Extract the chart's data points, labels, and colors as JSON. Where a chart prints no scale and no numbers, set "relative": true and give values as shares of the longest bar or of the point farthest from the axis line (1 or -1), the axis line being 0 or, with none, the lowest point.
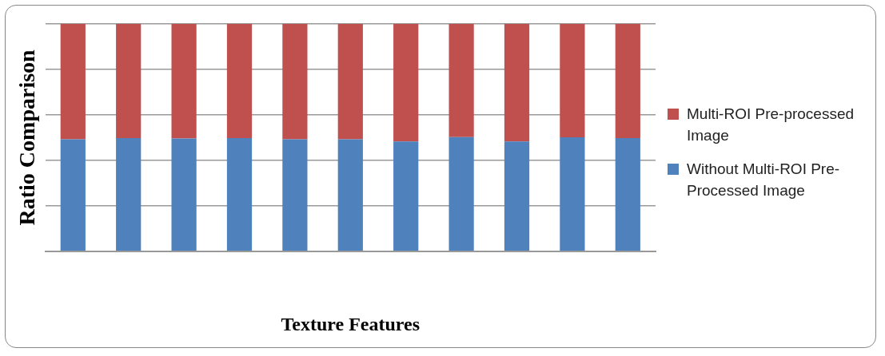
{
  "chart_data": {
    "type": "bar",
    "stacked": true,
    "relative": true,
    "xlabel": "Texture Features",
    "ylabel": "Ratio Comparison",
    "categories": [
      null,
      null,
      null,
      null,
      null,
      null,
      null,
      null,
      null,
      null,
      null
    ],
    "grid": "y",
    "legend": "right",
    "series": [
      {
        "name": "Without Multi-ROI Pre-Processed Image",
        "color": "#4f81bd",
        "values": [
          0.493,
          0.498,
          0.496,
          0.498,
          0.493,
          0.493,
          0.483,
          0.502,
          0.483,
          0.501,
          0.498
        ]
      },
      {
        "name": "Multi-ROI Pre-processed Image",
        "color": "#c0504d",
        "values": [
          0.507,
          0.502,
          0.504,
          0.502,
          0.507,
          0.507,
          0.517,
          0.498,
          0.517,
          0.499,
          0.502
        ]
      }
    ]
  }
}
